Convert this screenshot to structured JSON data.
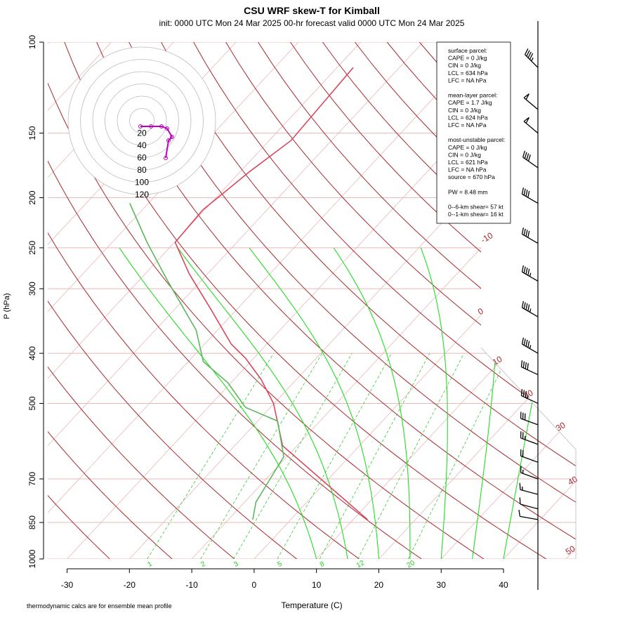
{
  "chart_data": {
    "type": "skew-t",
    "title": "CSU WRF skew-T for Kimball",
    "subtitle": "init: 0000 UTC Mon 24 Mar 2025    00-hr forecast valid 0000 UTC Mon 24 Mar 2025",
    "x_label": "Temperature (C)",
    "y_label": "P (hPa)",
    "footnote": "thermodynamic calcs are for ensemble mean profile",
    "log_y": true,
    "ylim": [
      1000,
      100
    ],
    "yticks": [
      100,
      150,
      200,
      250,
      300,
      400,
      500,
      700,
      850,
      1000
    ],
    "xlim": [
      -33.1,
      51.6
    ],
    "xticks": [
      -30,
      -20,
      -10,
      0,
      10,
      20,
      30,
      40
    ],
    "isotherm_labels": [
      -10,
      0,
      10,
      20,
      30,
      40,
      50
    ],
    "mixing_ratio_labels": [
      1,
      2,
      3,
      5,
      8,
      12,
      20
    ],
    "series": [
      {
        "color": "#d9485f",
        "pressure": [
          839,
          604,
          500,
          449,
          409,
          384,
          328,
          281,
          244,
          211,
          178,
          155,
          112
        ],
        "values": [
          12.3,
          -12.3,
          -20.1,
          -25.7,
          -31.3,
          -35.7,
          -44.3,
          -52.9,
          -59.9,
          -60.3,
          -58.5,
          -56.5,
          -57.4
        ]
      },
      {
        "color": "#5cb85c",
        "pressure": [
          839,
          776,
          634,
          541,
          509,
          456,
          415,
          361,
          290,
          244,
          205
        ],
        "values": [
          -6.1,
          -8.2,
          -10.5,
          -16.8,
          -24.0,
          -30.5,
          -37.6,
          -43.4,
          -55.3,
          -64.4,
          -73.0
        ]
      }
    ],
    "winds": {
      "pressure": [
        112,
        135,
        150,
        175,
        205,
        245,
        290,
        340,
        400,
        440,
        500,
        550,
        600,
        650,
        700,
        750,
        800,
        839
      ],
      "speed": [
        45,
        50,
        50,
        40,
        40,
        40,
        45,
        45,
        45,
        40,
        35,
        30,
        25,
        20,
        15,
        15,
        10,
        10
      ],
      "direction": [
        315,
        310,
        310,
        305,
        300,
        300,
        300,
        300,
        300,
        295,
        295,
        290,
        290,
        290,
        290,
        285,
        285,
        280
      ]
    },
    "hodograph": {
      "rings": [
        20,
        40,
        60,
        80,
        100,
        120
      ],
      "color": "#c000c0",
      "u": [
        38.9,
        43.4,
        49.1,
        41.1,
        32.0,
        14.9,
        -2.3
      ],
      "v": [
        -60.6,
        -32.0,
        -26.3,
        -12.6,
        -9.1,
        -9.1,
        -9.1
      ]
    },
    "stats": [
      [
        "surface parcel:",
        "CAPE = 0 J/kg",
        "CIN = 0 J/kg",
        "LCL = 634 hPa",
        "LFC = NA hPa"
      ],
      [
        "mean-layer parcel:",
        "CAPE = 1.7 J/kg",
        "CIN = 0 J/kg",
        "LCL = 624 hPa",
        "LFC = NA hPa"
      ],
      [
        "most-unstable parcel:",
        "CAPE = 0 J/kg",
        "CIN = 0 J/kg",
        "LCL = 621 hPa",
        "LFC = NA hPa",
        "source = 670 hPa"
      ],
      [
        "PW =  8.48 mm"
      ],
      [
        "0--6-km shear= 57 kt",
        "0--1-km shear= 16 kt"
      ]
    ]
  }
}
